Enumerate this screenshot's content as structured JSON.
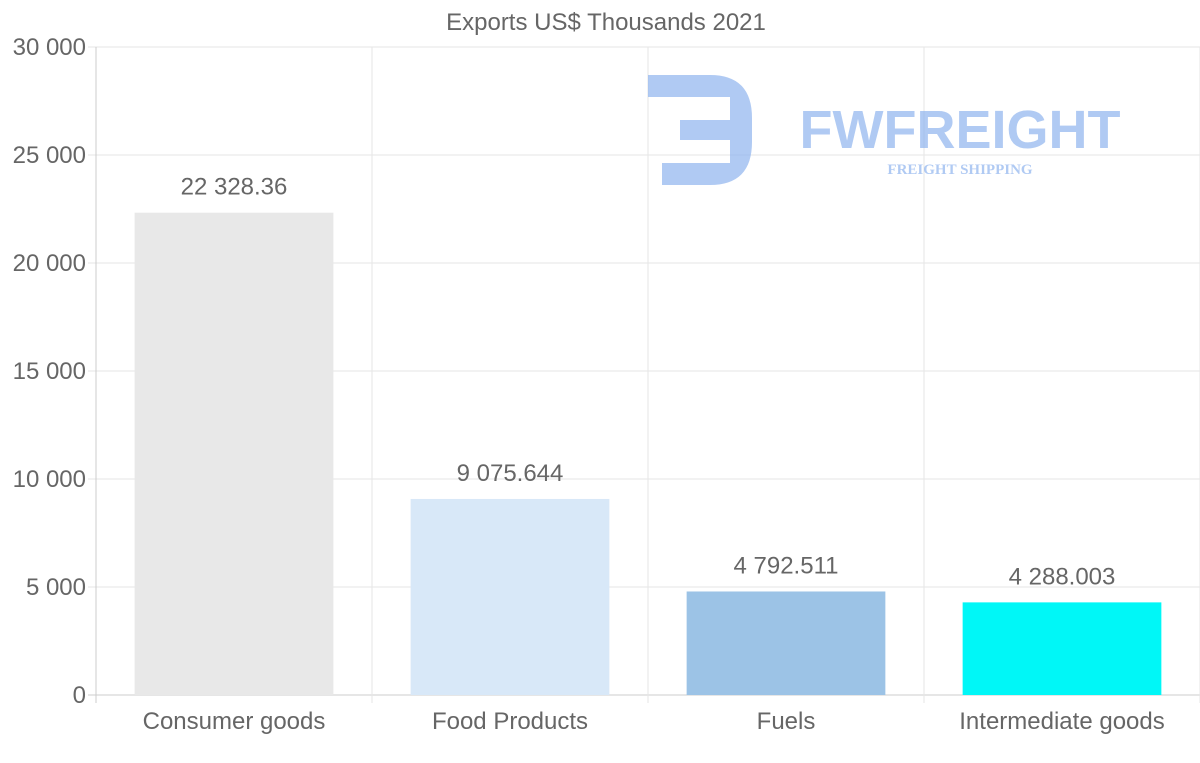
{
  "chart_data": {
    "type": "bar",
    "title": "Exports US$ Thousands 2021",
    "categories": [
      "Consumer goods",
      "Food Products",
      "Fuels",
      "Intermediate goods"
    ],
    "values": [
      22328.36,
      9075.644,
      4792.511,
      4288.003
    ],
    "value_labels": [
      "22 328.36",
      "9 075.644",
      "4 792.511",
      "4 288.003"
    ],
    "colors": [
      "#e8e8e8",
      "#d8e8f8",
      "#9cc3e6",
      "#00f7f7"
    ],
    "ylim": [
      0,
      30000
    ],
    "yticks": [
      0,
      5000,
      10000,
      15000,
      20000,
      25000,
      30000
    ],
    "ytick_labels": [
      "0",
      "5 000",
      "10 000",
      "15 000",
      "20 000",
      "25 000",
      "30 000"
    ],
    "xlabel": "",
    "ylabel": "",
    "grid": true
  },
  "watermark": {
    "brand": "FWFREIGHT",
    "tagline": "FREIGHT SHIPPING",
    "color": "#8fb4ee"
  }
}
